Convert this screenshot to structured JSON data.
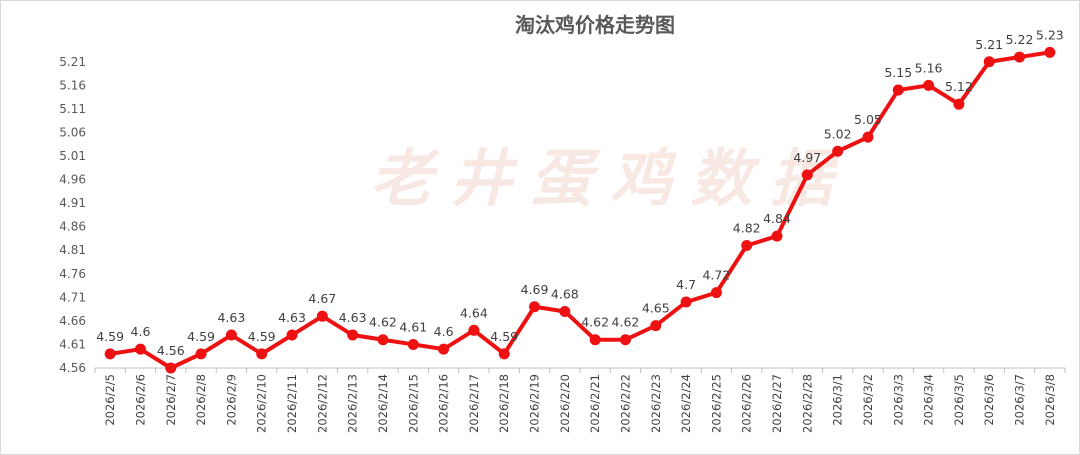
{
  "chart_data": {
    "type": "line",
    "title": "淘汰鸡价格走势图",
    "watermark": "老井蛋鸡数据",
    "color": "#ee1111",
    "xlabel": "",
    "ylabel": "",
    "ylim": [
      4.56,
      5.235
    ],
    "yticks": [
      4.56,
      4.61,
      4.66,
      4.71,
      4.76,
      4.81,
      4.86,
      4.91,
      4.96,
      5.01,
      5.06,
      5.11,
      5.16,
      5.21
    ],
    "grid": false,
    "categories": [
      "2026/2/5",
      "2026/2/6",
      "2026/2/7",
      "2026/2/8",
      "2026/2/9",
      "2026/2/10",
      "2026/2/11",
      "2026/2/12",
      "2026/2/13",
      "2026/2/14",
      "2026/2/15",
      "2026/2/16",
      "2026/2/17",
      "2026/2/18",
      "2026/2/19",
      "2026/2/20",
      "2026/2/21",
      "2026/2/22",
      "2026/2/23",
      "2026/2/24",
      "2026/2/25",
      "2026/2/26",
      "2026/2/27",
      "2026/2/28",
      "2026/3/1",
      "2026/3/2",
      "2026/3/3",
      "2026/3/4",
      "2026/3/5",
      "2026/3/6",
      "2026/3/7",
      "2026/3/8"
    ],
    "values": [
      4.59,
      4.6,
      4.56,
      4.59,
      4.63,
      4.59,
      4.63,
      4.67,
      4.63,
      4.62,
      4.61,
      4.6,
      4.64,
      4.59,
      4.69,
      4.68,
      4.62,
      4.62,
      4.65,
      4.7,
      4.72,
      4.82,
      4.84,
      4.97,
      5.02,
      5.05,
      5.15,
      5.16,
      5.12,
      5.21,
      5.22,
      5.23
    ]
  }
}
